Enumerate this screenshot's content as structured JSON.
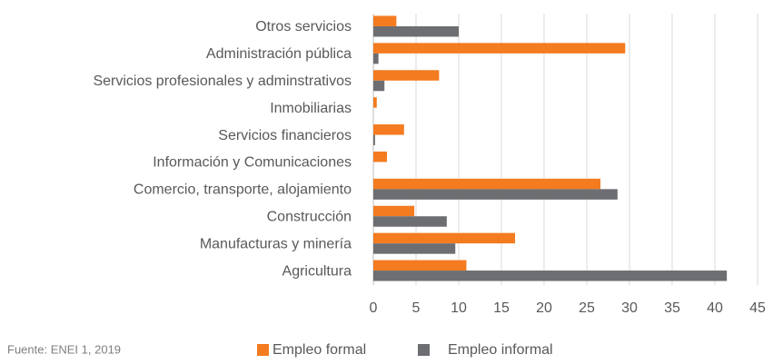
{
  "chart_data": {
    "type": "barh",
    "categories": [
      "Otros servicios",
      "Administración pública",
      "Servicios profesionales y adminstrativos",
      "Inmobiliarias",
      "Servicios financieros",
      "Información y Comunicaciones",
      "Comercio, transporte, alojamiento",
      "Construcción",
      "Manufacturas y minería",
      "Agricultura"
    ],
    "series": [
      {
        "name": "Empleo formal",
        "color": "#f47b20",
        "values": [
          2.7,
          29.5,
          7.7,
          0.4,
          3.6,
          1.6,
          26.6,
          4.8,
          16.6,
          10.9
        ]
      },
      {
        "name": "Empleo informal",
        "color": "#6d6e71",
        "values": [
          10.0,
          0.6,
          1.3,
          0,
          0.2,
          0,
          28.6,
          8.6,
          9.6,
          41.4
        ]
      }
    ],
    "xlim": [
      0,
      45
    ],
    "xticks": [
      0,
      5,
      10,
      15,
      20,
      25,
      30,
      35,
      40,
      45
    ],
    "grid": true,
    "source": "Fuente: ENEI 1, 2019"
  }
}
